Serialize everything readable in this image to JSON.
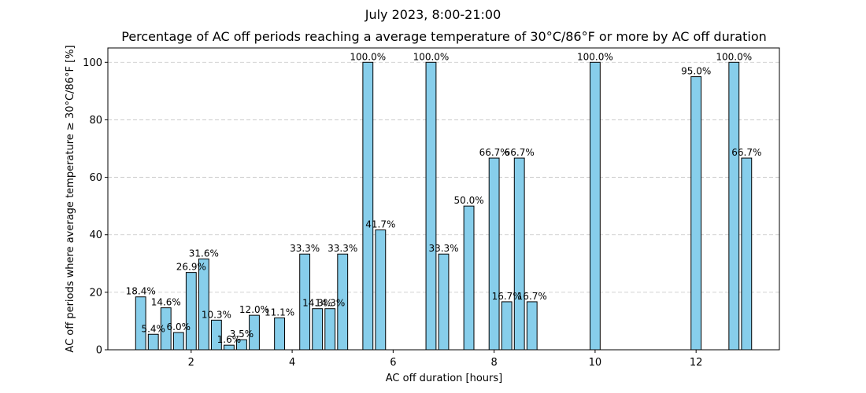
{
  "chart_data": {
    "type": "bar",
    "suptitle": "July 2023, 8:00-21:00",
    "title": "Percentage of AC off periods reaching a average temperature of 30°C/86°F or more by AC off duration",
    "xlabel": "AC off duration [hours]",
    "ylabel": "AC off periods where average temperature ≥ 30°C/86°F [%]",
    "xlim": [
      0.35,
      13.65
    ],
    "ylim": [
      0,
      105
    ],
    "xticks": [
      2,
      4,
      6,
      8,
      10,
      12
    ],
    "yticks": [
      0,
      20,
      40,
      60,
      80,
      100
    ],
    "grid": "y-dashed",
    "bar_color": "#87CEEB",
    "bar_width_hours": 0.2,
    "x": [
      1.0,
      1.25,
      1.5,
      1.75,
      2.0,
      2.25,
      2.5,
      2.75,
      3.0,
      3.25,
      3.75,
      4.25,
      4.5,
      4.75,
      5.0,
      5.5,
      5.75,
      6.75,
      7.0,
      7.5,
      8.0,
      8.25,
      8.5,
      8.75,
      10.0,
      12.0,
      12.75,
      13.0
    ],
    "values": [
      18.4,
      5.4,
      14.6,
      6.0,
      26.9,
      31.6,
      10.3,
      1.6,
      3.5,
      12.0,
      11.1,
      33.3,
      14.3,
      14.3,
      33.3,
      100.0,
      41.7,
      100.0,
      33.3,
      50.0,
      66.7,
      16.7,
      66.7,
      16.7,
      100.0,
      95.0,
      100.0,
      66.7
    ],
    "labels": [
      "18.4%",
      "5.4%",
      "14.6%",
      "6.0%",
      "26.9%",
      "31.6%",
      "10.3%",
      "1.6%",
      "3.5%",
      "12.0%",
      "11.1%",
      "33.3%",
      "14.3%",
      "14.3%",
      "33.3%",
      "100.0%",
      "41.7%",
      "100.0%",
      "33.3%",
      "50.0%",
      "66.7%",
      "16.7%",
      "66.7%",
      "16.7%",
      "100.0%",
      "95.0%",
      "100.0%",
      "66.7%"
    ]
  }
}
